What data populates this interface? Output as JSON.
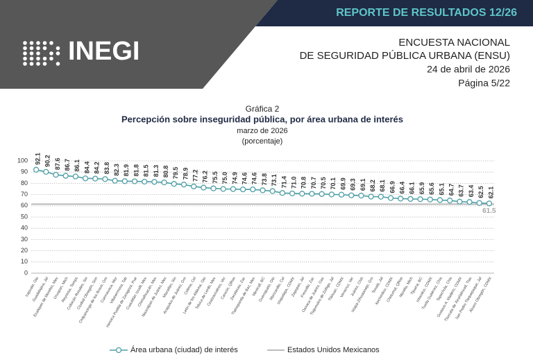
{
  "header": {
    "banner": "REPORTE DE RESULTADOS 12/26",
    "logo": "INEGI",
    "survey_line1": "ENCUESTA NACIONAL",
    "survey_line2": "DE SEGURIDAD PÚBLICA URBANA (ENSU)",
    "date": "24 de abril de 2026",
    "page": "Página 5/22"
  },
  "chart_data": {
    "type": "line",
    "label": "Gráfica 2",
    "title": "Percepción sobre inseguridad pública, por área urbana de interés",
    "subtitle": "marzo de 2026",
    "unit": "(porcentaje)",
    "categories": [
      "Irapuato, Gto",
      "Guadalajara, Jal",
      "Ecatepec de Morelos, Mex",
      "Uruapan, Mich",
      "Reynosa, Tamps",
      "Culiacán Rosales, Sin",
      "Ciudad Obregón, Son",
      "Chilpancingo de los Bravo, Gro",
      "Cuernavaca, Mor",
      "Villahermosa, Tab",
      "Heroica Puebla de Zaragoza, Pue",
      "Cuautitlán Izcalli, Mex",
      "Chimalhuacán, Mex",
      "Naucalpan de Juárez, Mex",
      "Mazatlán, Sin",
      "Acapulco de Juárez, Gro",
      "Colima, Col",
      "León de los Aldama, Gto",
      "Toluca de Lerdo, Mex",
      "Coatzacoalcos, Ver",
      "Cancún, QRoo",
      "Zacatecas, Zac",
      "Tlalnepantla de Baz, Mex",
      "Mexicali, BC",
      "Guanajuato, Gto",
      "Manzanillo, Col",
      "Iztapalapa, CDMX",
      "Zapopan, Jal",
      "Fresnillo, Zac",
      "Oaxaca de Juárez, Oax",
      "Tlajomulco de Zúñiga, Jal",
      "Tláhuac, CDMX",
      "Veracruz, Ver",
      "Juárez, Chih",
      "Ixtapa-Zihuatanejo, Gro",
      "Tonalá, Jal",
      "Xochimilco, CDMX",
      "Chetumal, QRoo",
      "Morelia, Mich",
      "Tijuana, BC",
      "Iztacalco, CDMX",
      "Tuxtla Gutiérrez, Chis",
      "Tapachula, Chis",
      "Gustavo A. Madero, CDMX",
      "Tlaxcala de Xicohténcatl, Tlax",
      "San Pedro Tlaquepaque, Jal",
      "Álvaro Obregón, CDMX"
    ],
    "series": [
      {
        "name": "Área urbana (ciudad) de interés",
        "color": "#4e9ea6",
        "values": [
          92.1,
          90.2,
          87.6,
          86.7,
          86.1,
          84.4,
          84.2,
          83.8,
          82.3,
          81.9,
          81.8,
          81.5,
          81.3,
          80.8,
          79.5,
          78.9,
          77.2,
          76.2,
          75.5,
          75.0,
          74.9,
          74.6,
          74.6,
          73.8,
          73.1,
          71.4,
          71.0,
          70.8,
          70.7,
          70.5,
          70.1,
          69.9,
          69.3,
          69.1,
          68.2,
          68.1,
          66.9,
          66.4,
          66.1,
          65.9,
          65.6,
          65.1,
          64.7,
          63.7,
          63.4,
          62.5,
          62.1
        ],
        "value_labels": [
          "92.1",
          "90.2",
          "87.6",
          "86.7",
          "86.1",
          "84.4",
          "84.2",
          "83.8",
          "82.3",
          "81.9",
          "81.8",
          "81.5",
          "81.3",
          "80.8",
          "79.5",
          "78.9",
          "77.2",
          "76.2",
          "75.5",
          "75.0",
          "74.9",
          "74.6",
          "74.6",
          "73.8",
          "73.1",
          "71.4",
          "71.0",
          "70.8",
          "70.7",
          "70.5",
          "70.1",
          "69.9",
          "69.3",
          "69.1",
          "68.2",
          "68.1",
          "66.9",
          "66.4",
          "66.1",
          "65.9",
          "65.6",
          "65.1",
          "64.7",
          "63.7",
          "63.4",
          "62.5",
          "62.1"
        ]
      }
    ],
    "reference_line": {
      "name": "Estados Unidos Mexicanos",
      "value": 61.5,
      "color": "#a6a6a6"
    },
    "ylim": [
      0,
      100
    ],
    "yticks": [
      0,
      10,
      20,
      30,
      40,
      50,
      60,
      70,
      80,
      90,
      100
    ],
    "grid": true
  }
}
